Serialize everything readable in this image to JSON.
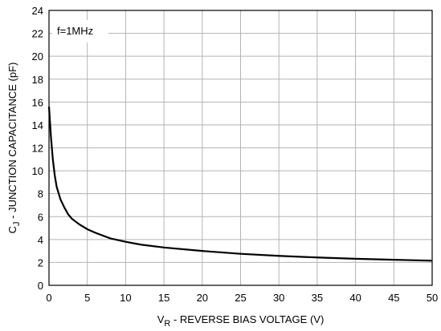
{
  "chart_data": {
    "type": "line",
    "title": "",
    "annotation": "f=1MHz",
    "xlabel": {
      "main": "V",
      "sub": "R",
      "rest": " - REVERSE BIAS VOLTAGE (V)"
    },
    "ylabel": {
      "main": "C",
      "sub": "J",
      "rest": " - JUNCTION CAPACITANCE (pF)"
    },
    "xlim": [
      0,
      50
    ],
    "ylim": [
      0,
      24
    ],
    "x_ticks": [
      "0",
      "5",
      "10",
      "15",
      "20",
      "25",
      "30",
      "35",
      "40",
      "45",
      "50"
    ],
    "y_ticks": [
      "0",
      "2",
      "4",
      "6",
      "8",
      "10",
      "12",
      "14",
      "16",
      "18",
      "20",
      "22",
      "24"
    ],
    "grid": true,
    "line_color": "#000000",
    "grid_color": "#b3b3b3",
    "series": [
      {
        "x": [
          0,
          0.25,
          0.5,
          0.75,
          1,
          1.5,
          2,
          2.5,
          3,
          4,
          5,
          6,
          8,
          10,
          12,
          15,
          20,
          25,
          30,
          35,
          40,
          45,
          50
        ],
        "y": [
          15.6,
          13.0,
          11.0,
          9.6,
          8.6,
          7.5,
          6.8,
          6.2,
          5.8,
          5.3,
          4.9,
          4.6,
          4.1,
          3.8,
          3.55,
          3.3,
          3.0,
          2.75,
          2.57,
          2.43,
          2.32,
          2.23,
          2.15
        ]
      }
    ]
  }
}
